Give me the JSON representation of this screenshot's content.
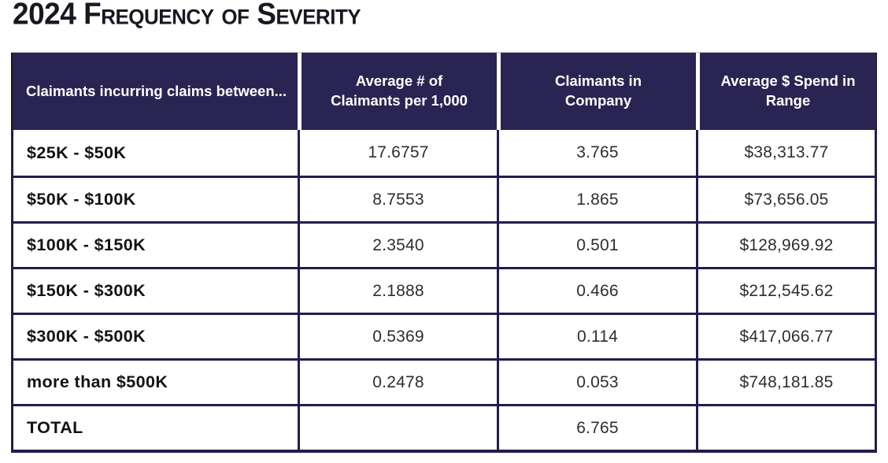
{
  "title": "2024 Frequency of Severity",
  "colors": {
    "header_background": "#2a2453",
    "header_text": "#ffffff",
    "border": "#221d4d",
    "title_text": "#1a1721",
    "row_background": "#ffffff"
  },
  "chart_data": {
    "type": "table",
    "title": "2024 Frequency of Severity",
    "columns": [
      "Claimants incurring claims between...",
      "Average # of\nClaimants per 1,000",
      "Claimants in\nCompany",
      "Average $ Spend in\nRange"
    ],
    "rows": [
      [
        "$25K - $50K",
        "17.6757",
        "3.765",
        "$38,313.77"
      ],
      [
        "$50K - $100K",
        "8.7553",
        "1.865",
        "$73,656.05"
      ],
      [
        "$100K - $150K",
        "2.3540",
        "0.501",
        "$128,969.92"
      ],
      [
        "$150K - $300K",
        "2.1888",
        "0.466",
        "$212,545.62"
      ],
      [
        "$300K - $500K",
        "0.5369",
        "0.114",
        "$417,066.77"
      ],
      [
        "more than $500K",
        "0.2478",
        "0.053",
        "$748,181.85"
      ],
      [
        "TOTAL",
        "",
        "6.765",
        ""
      ]
    ]
  }
}
